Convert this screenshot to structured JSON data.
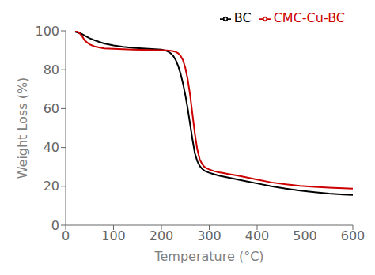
{
  "chart_data": {
    "type": "line",
    "xlabel": "Temperature (°C)",
    "ylabel": "Weight Loss (%)",
    "xlim": [
      0,
      600
    ],
    "ylim": [
      0,
      100
    ],
    "xticks": [
      0,
      100,
      200,
      300,
      400,
      500,
      600
    ],
    "yticks": [
      0,
      20,
      40,
      60,
      80,
      100
    ],
    "grid": false,
    "legend": "upper right",
    "x": [
      20,
      25,
      30,
      35,
      40,
      50,
      60,
      70,
      80,
      100,
      120,
      140,
      160,
      180,
      200,
      210,
      215,
      220,
      225,
      230,
      235,
      240,
      245,
      250,
      255,
      260,
      265,
      270,
      275,
      280,
      285,
      290,
      295,
      300,
      310,
      320,
      330,
      340,
      360,
      380,
      400,
      430,
      460,
      490,
      520,
      550,
      580,
      600
    ],
    "series": [
      {
        "name": "BC",
        "color": "#000000",
        "values": [
          99.5,
          99.2,
          98.8,
          98.2,
          97.5,
          96.2,
          95.2,
          94.3,
          93.5,
          92.5,
          91.8,
          91.3,
          91.0,
          90.7,
          90.3,
          89.8,
          89.2,
          88.3,
          87.0,
          85.0,
          82.0,
          78.0,
          73.0,
          67.0,
          60.0,
          52.0,
          44.0,
          37.0,
          33.0,
          30.5,
          29.0,
          28.0,
          27.5,
          27.0,
          26.2,
          25.5,
          25.0,
          24.5,
          23.5,
          22.5,
          21.5,
          20.0,
          18.8,
          17.8,
          17.0,
          16.3,
          15.8,
          15.5
        ]
      },
      {
        "name": "CMC-Cu-BC",
        "color": "#cc0000",
        "values": [
          100,
          99.5,
          98.5,
          97.0,
          95.0,
          93.0,
          92.0,
          91.5,
          91.0,
          90.8,
          90.5,
          90.3,
          90.2,
          90.1,
          90.0,
          89.9,
          89.8,
          89.7,
          89.5,
          89.2,
          88.5,
          87.2,
          85.0,
          81.0,
          75.0,
          67.0,
          57.0,
          47.0,
          39.0,
          34.0,
          31.5,
          30.0,
          29.2,
          28.7,
          27.8,
          27.2,
          26.8,
          26.3,
          25.5,
          24.5,
          23.5,
          22.0,
          21.0,
          20.2,
          19.7,
          19.3,
          19.0,
          18.8
        ]
      }
    ]
  }
}
